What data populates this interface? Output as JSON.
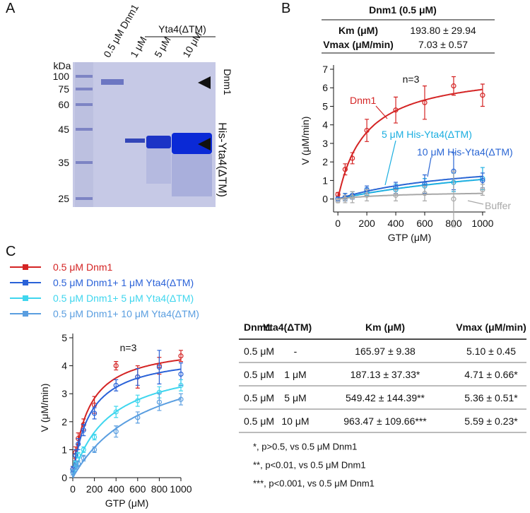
{
  "panel_labels": [
    "A",
    "B",
    "C"
  ],
  "gel": {
    "unit": "kDa",
    "markers": [
      100,
      75,
      60,
      45,
      35,
      25
    ],
    "lanes": [
      "0.5 μM Dnm1",
      "1 μM",
      "5 μM",
      "10 μM"
    ],
    "group_label": "Yta4(ΔTM)",
    "band_labels": [
      "Dnm1",
      "His-Yta4(ΔTM)"
    ]
  },
  "table_b": {
    "title": "Dnm1 (0.5 μM)",
    "rows": [
      [
        "Km (μM)",
        "193.80 ± 29.94"
      ],
      [
        "Vmax (μM/min)",
        "7.03 ± 0.57"
      ]
    ]
  },
  "table_c": {
    "header": [
      "Dnm1",
      "Yta4(ΔTM)",
      "Km (μM)",
      "Vmax (μM/min)"
    ],
    "rows": [
      [
        "0.5 μM",
        "-",
        "165.97 ± 9.38",
        "5.10 ± 0.45"
      ],
      [
        "0.5 μM",
        "1 μM",
        "187.13 ± 37.33*",
        "4.71 ± 0.66*"
      ],
      [
        "0.5 μM",
        "5 μM",
        "549.42 ± 144.39**",
        "5.36 ± 0.51*"
      ],
      [
        "0.5 μM",
        "10 μM",
        "963.47 ± 109.66***",
        "5.59 ± 0.23*"
      ]
    ],
    "notes": [
      "*, p>0.5, vs 0.5 μM Dnm1",
      "**, p<0.01, vs 0.5 μM Dnm1",
      "***, p<0.001, vs 0.5 μM Dnm1"
    ]
  },
  "chart_data": [
    {
      "type": "line",
      "annotation": "n=3",
      "x_label": "GTP (μM)",
      "y_label": "V (μM/min)",
      "x": [
        0,
        50,
        100,
        200,
        400,
        600,
        800,
        1000
      ],
      "xlim": [
        -30,
        1020
      ],
      "ylim": [
        -0.7,
        7
      ],
      "xticks": [
        0,
        200,
        400,
        600,
        800,
        1000
      ],
      "yticks": [
        0,
        1,
        2,
        3,
        4,
        5,
        6,
        7
      ],
      "grid": false,
      "legend": "inline",
      "series": [
        {
          "name": "Dnm1",
          "color": "#d42424",
          "values": [
            0.25,
            1.6,
            2.2,
            3.7,
            4.8,
            5.2,
            6.1,
            5.6
          ],
          "errors": [
            0.1,
            0.3,
            0.3,
            0.6,
            0.7,
            0.9,
            0.5,
            0.6
          ]
        },
        {
          "name": "5 μM His-Yta4(ΔTM)",
          "color": "#1aaee0",
          "values": [
            0,
            0.1,
            0.2,
            0.4,
            0.5,
            0.7,
            0.9,
            1.1
          ],
          "errors": [
            0.1,
            0.2,
            0.2,
            0.2,
            0.3,
            0.4,
            0.5,
            0.6
          ]
        },
        {
          "name": "10 μM His-Yta4(ΔTM)",
          "color": "#2a66d4",
          "values": [
            0,
            0.1,
            0.2,
            0.5,
            0.6,
            0.8,
            1.5,
            1.0
          ],
          "errors": [
            0.1,
            0.2,
            0.2,
            0.2,
            0.3,
            0.5,
            1.0,
            0.4
          ]
        },
        {
          "name": "Buffer",
          "color": "#a8a8a8",
          "values": [
            -0.1,
            0,
            0.1,
            0.2,
            0.2,
            0.3,
            0,
            0.5
          ],
          "errors": [
            0.1,
            0.2,
            0.3,
            0.3,
            0.3,
            0.4,
            1.5,
            0.3
          ]
        }
      ]
    },
    {
      "type": "line",
      "annotation": "n=3",
      "x_label": "GTP (μM)",
      "y_label": "V (μM/min)",
      "x": [
        0,
        25,
        50,
        100,
        200,
        400,
        600,
        800,
        1000
      ],
      "xlim": [
        0,
        1000
      ],
      "ylim": [
        0,
        5
      ],
      "xticks": [
        0,
        200,
        400,
        600,
        800,
        1000
      ],
      "yticks": [
        0,
        1,
        2,
        3,
        4,
        5
      ],
      "grid": false,
      "legend": "upper left",
      "series": [
        {
          "name": "0.5 μM Dnm1",
          "color": "#d42424",
          "values": [
            0.3,
            0.9,
            1.4,
            1.9,
            2.6,
            4.0,
            3.6,
            4.0,
            4.35
          ],
          "errors": [
            0.1,
            0.2,
            0.2,
            0.2,
            0.3,
            0.15,
            0.4,
            0.3,
            0.2
          ]
        },
        {
          "name": "0.5 μM Dnm1+ 1 μM Yta4(ΔTM)",
          "color": "#2a62d8",
          "values": [
            0.3,
            0.8,
            1.2,
            1.7,
            2.3,
            3.3,
            3.6,
            3.95,
            3.7
          ],
          "errors": [
            0.1,
            0.2,
            0.2,
            0.2,
            0.2,
            0.2,
            0.3,
            0.6,
            0.4
          ]
        },
        {
          "name": "0.5 μM Dnm1+ 5 μM Yta4(ΔTM)",
          "color": "#3fd6ee",
          "values": [
            0.2,
            0.5,
            0.8,
            1.0,
            1.45,
            2.35,
            2.75,
            3.05,
            3.3
          ],
          "errors": [
            0.1,
            0.1,
            0.1,
            0.1,
            0.1,
            0.2,
            0.2,
            0.2,
            0.2
          ]
        },
        {
          "name": "0.5 μM Dnm1+ 10 μM Yta4(ΔTM)",
          "color": "#5a9ee0",
          "values": [
            0.2,
            0.4,
            0.5,
            0.7,
            1.0,
            1.65,
            2.15,
            2.7,
            2.8
          ],
          "errors": [
            0.1,
            0.1,
            0.1,
            0.1,
            0.1,
            0.2,
            0.2,
            0.3,
            0.2
          ]
        }
      ]
    }
  ]
}
